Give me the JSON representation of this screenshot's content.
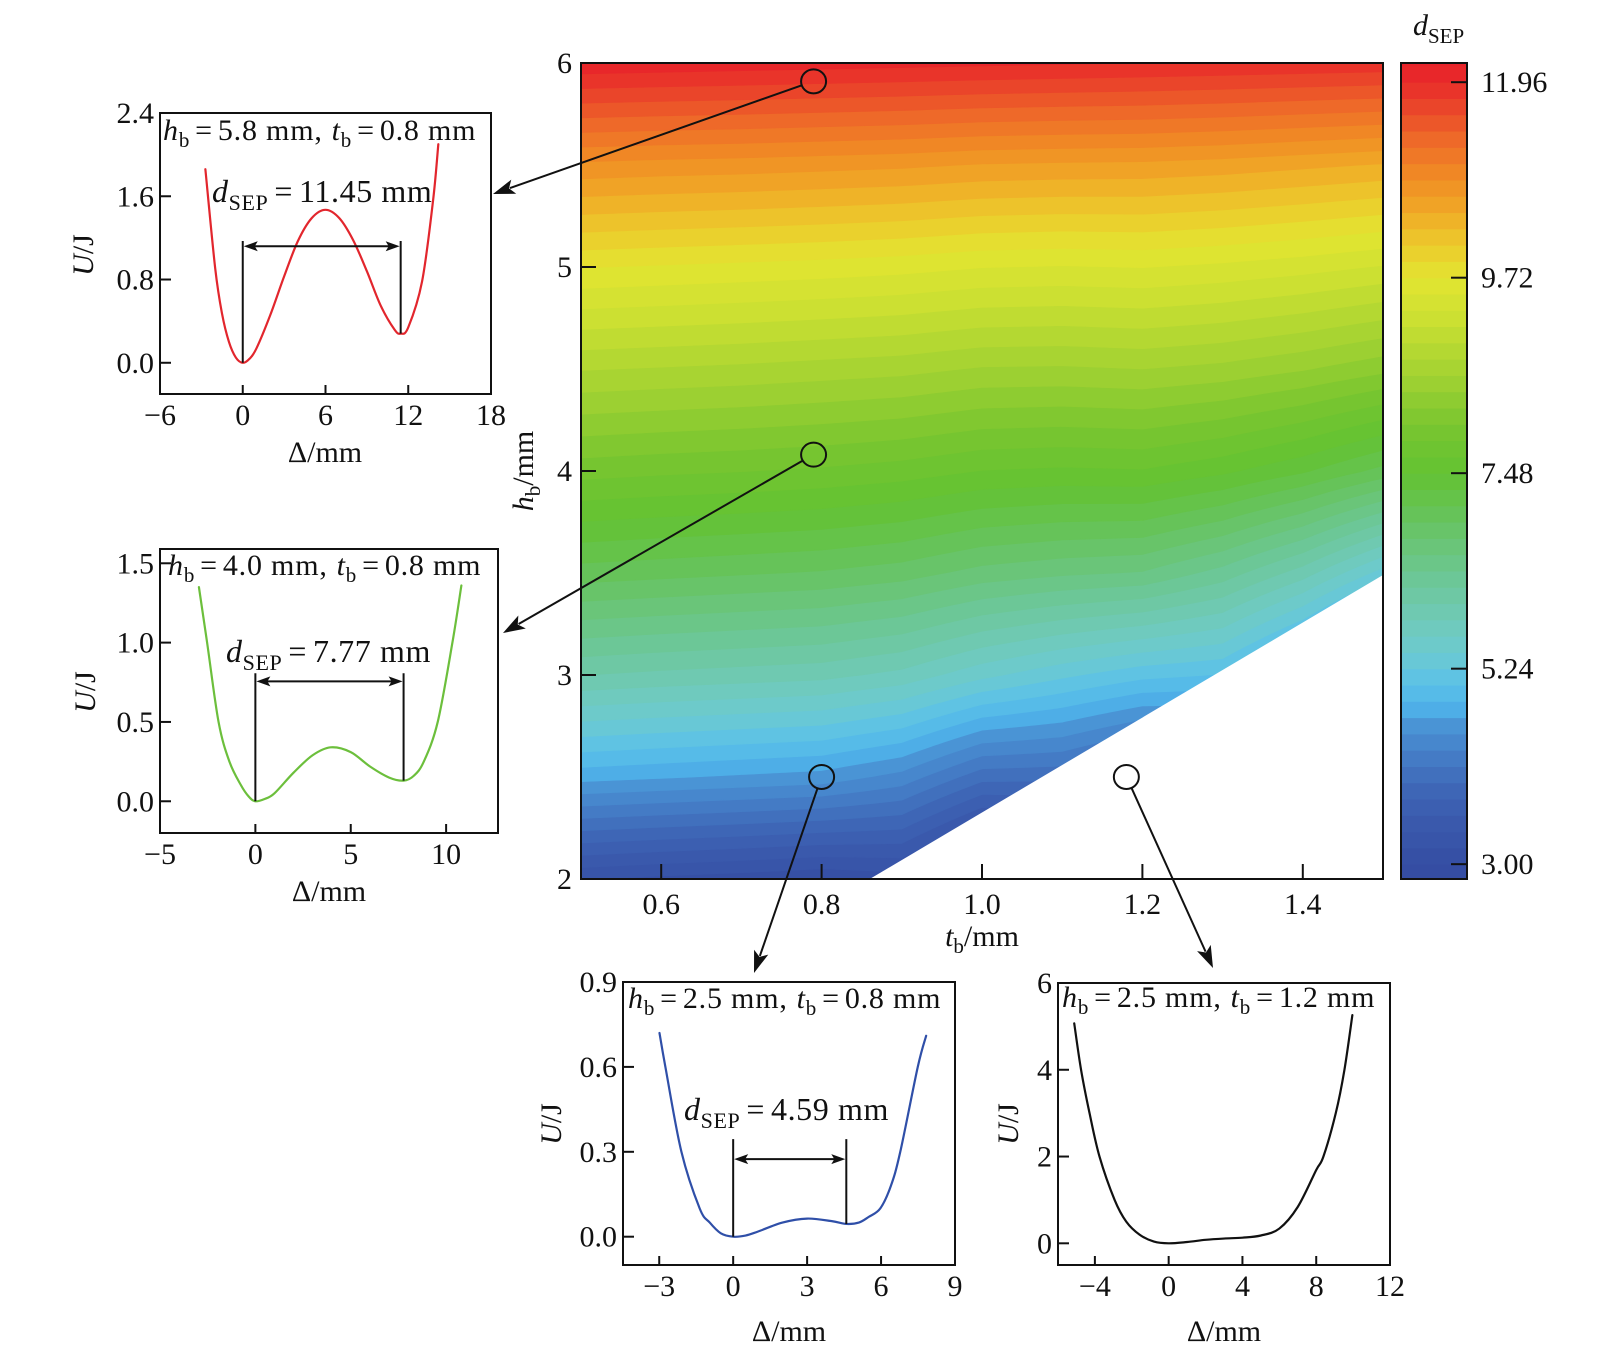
{
  "chart_data": [
    {
      "type": "heatmap",
      "xlabel": {
        "var": "t",
        "sub": "b",
        "unit": "/mm"
      },
      "ylabel": {
        "var": "h",
        "sub": "b",
        "unit": "/mm"
      },
      "xlim": [
        0.5,
        1.5
      ],
      "ylim": [
        2,
        6
      ],
      "xticks": [
        0.6,
        0.8,
        1.0,
        1.2,
        1.4
      ],
      "xtick_labels": [
        "0.6",
        "0.8",
        "1.0",
        "1.2",
        "1.4"
      ],
      "yticks": [
        2,
        3,
        4,
        5,
        6
      ],
      "ytick_labels": [
        "2",
        "3",
        "4",
        "5",
        "6"
      ],
      "grid_on": false,
      "grid": {
        "t": [
          0.5,
          0.6,
          0.7,
          0.8,
          0.9,
          1.0,
          1.1,
          1.2,
          1.3,
          1.4,
          1.5
        ],
        "h": [
          2.0,
          2.5,
          3.0,
          3.5,
          4.0,
          4.5,
          5.0,
          5.5,
          6.0
        ],
        "d_sep": [
          [
            3.2,
            3.14,
            3.09,
            3.03,
            null,
            null,
            null,
            null,
            null,
            null,
            null
          ],
          [
            4.75,
            4.7,
            4.65,
            4.6,
            4.42,
            4.0,
            null,
            null,
            null,
            null,
            null
          ],
          [
            5.99,
            5.94,
            5.9,
            5.86,
            5.74,
            5.48,
            5.28,
            5.11,
            null,
            null,
            null
          ],
          [
            7.02,
            6.98,
            6.94,
            6.9,
            6.82,
            6.66,
            6.58,
            6.53,
            6.28,
            5.89,
            5.34
          ],
          [
            7.93,
            7.89,
            7.86,
            7.82,
            7.76,
            7.66,
            7.63,
            7.65,
            7.52,
            7.32,
            7.04
          ],
          [
            8.8,
            8.77,
            8.74,
            8.7,
            8.66,
            8.58,
            8.57,
            8.6,
            8.54,
            8.43,
            8.28
          ],
          [
            9.73,
            9.7,
            9.67,
            9.64,
            9.6,
            9.54,
            9.52,
            9.54,
            9.49,
            9.42,
            9.33
          ],
          [
            10.8,
            10.77,
            10.75,
            10.72,
            10.69,
            10.64,
            10.62,
            10.61,
            10.57,
            10.51,
            10.45
          ],
          [
            12.1,
            12.08,
            12.06,
            12.04,
            12.02,
            12.0,
            11.98,
            11.96,
            11.94,
            11.92,
            11.9
          ]
        ]
      },
      "blank_region": [
        [
          0.86,
          2.0
        ],
        [
          1.5,
          3.49
        ],
        [
          1.5,
          2.0
        ]
      ],
      "levels": {
        "start": 3.0,
        "step": 0.1867
      },
      "colorbar": {
        "label": {
          "var": "d",
          "sub": "SEP"
        },
        "range": [
          2.83,
          12.18
        ],
        "ticks": [
          3.0,
          5.24,
          7.48,
          9.72,
          11.96
        ],
        "tick_labels": [
          "3.00",
          "5.24",
          "7.48",
          "9.72",
          "11.96"
        ]
      },
      "colormap": [
        [
          2.8,
          "#344ca2"
        ],
        [
          3.1,
          "#3650a5"
        ],
        [
          3.5,
          "#3a5aad"
        ],
        [
          3.9,
          "#3f68b8"
        ],
        [
          4.3,
          "#4680c8"
        ],
        [
          4.6,
          "#4a95d6"
        ],
        [
          4.8,
          "#4fb2ea"
        ],
        [
          5.1,
          "#5cc2e6"
        ],
        [
          5.4,
          "#6ccad2"
        ],
        [
          5.8,
          "#70cab8"
        ],
        [
          6.2,
          "#6dc79c"
        ],
        [
          6.6,
          "#6ac57c"
        ],
        [
          7.0,
          "#66c35a"
        ],
        [
          7.48,
          "#63c232"
        ],
        [
          8.0,
          "#78c530"
        ],
        [
          8.6,
          "#a2d232"
        ],
        [
          9.2,
          "#c9df32"
        ],
        [
          9.72,
          "#e3e531"
        ],
        [
          10.1,
          "#ecca2c"
        ],
        [
          10.5,
          "#f0a826"
        ],
        [
          10.9,
          "#f08a25"
        ],
        [
          11.3,
          "#ee6a29"
        ],
        [
          11.7,
          "#ea432a"
        ],
        [
          12.0,
          "#e8282a"
        ],
        [
          12.3,
          "#e7222a"
        ]
      ],
      "markers": [
        {
          "t": 0.79,
          "h": 5.91
        },
        {
          "t": 0.79,
          "h": 4.08
        },
        {
          "t": 0.8,
          "h": 2.5
        },
        {
          "t": 1.18,
          "h": 2.5
        }
      ]
    },
    {
      "type": "line",
      "title": {
        "h": "h",
        "h_sub": "b",
        "eq1": "=",
        "h_val": "5.8 mm,",
        "t": "t",
        "t_sub": "b",
        "eq2": "=",
        "t_val": "0.8 mm"
      },
      "xlabel": "Δ/mm",
      "ylabel": {
        "var": "U",
        "unit": "/J"
      },
      "xlim": [
        -6,
        18
      ],
      "ylim": [
        -0.3,
        2.4
      ],
      "xticks": [
        -6,
        0,
        6,
        12,
        18
      ],
      "xtick_labels": [
        "−6",
        "0",
        "6",
        "12",
        "18"
      ],
      "yticks": [
        0,
        0.8,
        1.6,
        2.4
      ],
      "ytick_labels": [
        "0.0",
        "0.8",
        "1.6",
        "2.4"
      ],
      "grid_on": false,
      "series": [
        {
          "color": "#e2262d",
          "x": [
            -2.71,
            -2,
            -1.5,
            -1,
            -0.5,
            0,
            0.5,
            1,
            2,
            3,
            4,
            5,
            6,
            7,
            8,
            9,
            10,
            11,
            11.45,
            12,
            13,
            13.8,
            14.18
          ],
          "y": [
            1.86,
            0.91,
            0.47,
            0.2,
            0.05,
            0,
            0.04,
            0.14,
            0.46,
            0.83,
            1.17,
            1.39,
            1.47,
            1.39,
            1.18,
            0.88,
            0.55,
            0.32,
            0.28,
            0.34,
            0.78,
            1.56,
            2.1
          ]
        }
      ],
      "annotation": {
        "label": {
          "var": "d",
          "sub": "SEP",
          "eq": "=",
          "val": "11.45 mm"
        },
        "x_start": 0,
        "y_start": 0,
        "x_end": 11.45,
        "y_end": 0.28,
        "arrow_y": 1.12,
        "line_top": 1.17
      }
    },
    {
      "type": "line",
      "title": {
        "h": "h",
        "h_sub": "b",
        "eq1": "=",
        "h_val": "4.0 mm,",
        "t": "t",
        "t_sub": "b",
        "eq2": "=",
        "t_val": "0.8 mm"
      },
      "xlabel": "Δ/mm",
      "ylabel": {
        "var": "U",
        "unit": "/J"
      },
      "xlim": [
        -5,
        12.72
      ],
      "ylim": [
        -0.2,
        1.59
      ],
      "xticks": [
        -5,
        0,
        5,
        10
      ],
      "xtick_labels": [
        "−5",
        "0",
        "5",
        "10"
      ],
      "yticks": [
        0,
        0.5,
        1.0,
        1.5
      ],
      "ytick_labels": [
        "0.0",
        "0.5",
        "1.0",
        "1.5"
      ],
      "grid_on": false,
      "series": [
        {
          "color": "#6cbf3c",
          "x": [
            -2.96,
            -2.53,
            -1.93,
            -1.36,
            -0.75,
            -0.35,
            0,
            0.5,
            1,
            2,
            3,
            3.95,
            5,
            6,
            7,
            7.77,
            8.3,
            8.83,
            9.56,
            10.33,
            10.8
          ],
          "y": [
            1.35,
            1.0,
            0.5,
            0.25,
            0.1,
            0.03,
            0,
            0.015,
            0.05,
            0.18,
            0.29,
            0.34,
            0.31,
            0.22,
            0.15,
            0.13,
            0.16,
            0.25,
            0.5,
            1.0,
            1.36
          ]
        }
      ],
      "annotation": {
        "label": {
          "var": "d",
          "sub": "SEP",
          "eq": "=",
          "val": "7.77 mm"
        },
        "x_start": 0,
        "y_start": 0,
        "x_end": 7.77,
        "y_end": 0.13,
        "arrow_y": 0.756,
        "line_top": 0.807
      }
    },
    {
      "type": "line",
      "title": {
        "h": "h",
        "h_sub": "b",
        "eq1": "=",
        "h_val": "2.5 mm,",
        "t": "t",
        "t_sub": "b",
        "eq2": "=",
        "t_val": "0.8 mm"
      },
      "xlabel": "Δ/mm",
      "ylabel": {
        "var": "U",
        "unit": "/J"
      },
      "xlim": [
        -4.47,
        9.0
      ],
      "ylim": [
        -0.1,
        0.9
      ],
      "xticks": [
        -3,
        0,
        3,
        6,
        9
      ],
      "xtick_labels": [
        "−3",
        "0",
        "3",
        "6",
        "9"
      ],
      "yticks": [
        0,
        0.3,
        0.6,
        0.9
      ],
      "ytick_labels": [
        "0.0",
        "0.3",
        "0.6",
        "0.9"
      ],
      "grid_on": false,
      "series": [
        {
          "color": "#2f4fa8",
          "x": [
            -2.99,
            -2.75,
            -2.1,
            -1.36,
            -0.95,
            -0.5,
            0,
            0.5,
            1,
            2,
            3,
            4,
            4.59,
            5.1,
            5.5,
            5.97,
            6.4,
            6.78,
            7.49,
            7.83
          ],
          "y": [
            0.72,
            0.6,
            0.3,
            0.1,
            0.05,
            0.012,
            0,
            0.004,
            0.018,
            0.05,
            0.064,
            0.055,
            0.045,
            0.05,
            0.07,
            0.1,
            0.18,
            0.3,
            0.6,
            0.71
          ]
        }
      ],
      "annotation": {
        "label": {
          "var": "d",
          "sub": "SEP",
          "eq": "=",
          "val": "4.59 mm"
        },
        "x_start": 0,
        "y_start": 0,
        "x_end": 4.59,
        "y_end": 0.045,
        "arrow_y": 0.274,
        "line_top": 0.345
      }
    },
    {
      "type": "line",
      "title": {
        "h": "h",
        "h_sub": "b",
        "eq1": "=",
        "h_val": "2.5 mm,",
        "t": "t",
        "t_sub": "b",
        "eq2": "=",
        "t_val": "1.2 mm"
      },
      "xlabel": "Δ/mm",
      "ylabel": {
        "var": "U",
        "unit": "/J"
      },
      "xlim": [
        -6,
        12
      ],
      "ylim": [
        -0.5,
        6
      ],
      "xticks": [
        -4,
        0,
        4,
        8,
        12
      ],
      "xtick_labels": [
        "−4",
        "0",
        "4",
        "8",
        "12"
      ],
      "yticks": [
        0,
        2,
        4,
        6
      ],
      "ytick_labels": [
        "0",
        "2",
        "4",
        "6"
      ],
      "grid_on": false,
      "series": [
        {
          "color": "#111111",
          "x": [
            -5.12,
            -4.75,
            -4.29,
            -3.75,
            -2.93,
            -2.3,
            -1.58,
            -0.8,
            0,
            1,
            2,
            3,
            4,
            5,
            6,
            7,
            8,
            8.39,
            9.06,
            9.53,
            9.96
          ],
          "y": [
            5.07,
            4.0,
            3.0,
            2.0,
            1.0,
            0.5,
            0.2,
            0.04,
            0,
            0.03,
            0.08,
            0.11,
            0.13,
            0.18,
            0.34,
            0.84,
            1.69,
            2.0,
            3.0,
            4.0,
            5.26
          ]
        }
      ]
    }
  ]
}
